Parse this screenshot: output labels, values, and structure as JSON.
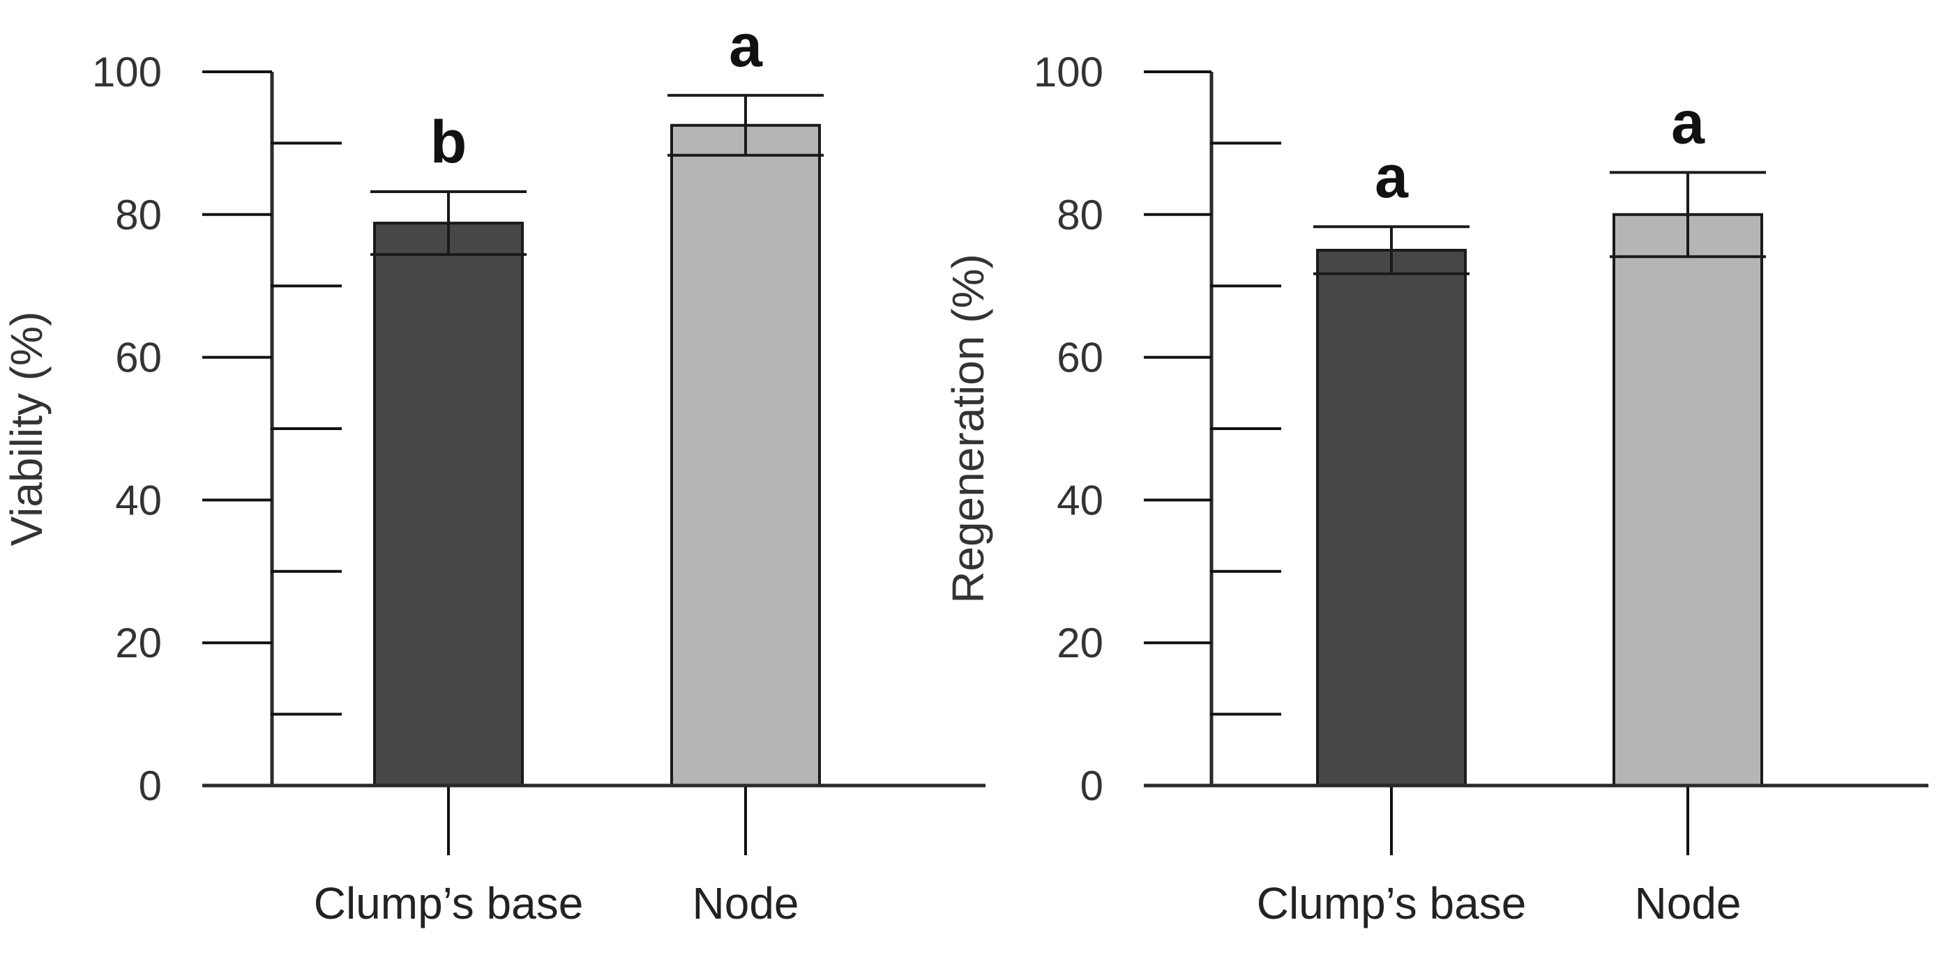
{
  "chart_data": [
    {
      "type": "bar",
      "title": "",
      "xlabel": "",
      "ylabel": "Viability (%)",
      "ylim": [
        0,
        100
      ],
      "yticks": [
        0,
        20,
        40,
        60,
        80,
        100
      ],
      "categories": [
        "Clump’s base",
        "Node"
      ],
      "values": [
        78.8,
        92.5
      ],
      "errors": [
        4.4,
        4.2
      ],
      "significance": [
        "b",
        "a"
      ],
      "colors": [
        "#474747",
        "#b5b5b5"
      ]
    },
    {
      "type": "bar",
      "title": "",
      "xlabel": "",
      "ylabel": "Regeneration (%)",
      "ylim": [
        0,
        100
      ],
      "yticks": [
        0,
        20,
        40,
        60,
        80,
        100
      ],
      "categories": [
        "Clump’s base",
        "Node"
      ],
      "values": [
        75.0,
        80.0
      ],
      "errors": [
        3.3,
        5.9
      ],
      "significance": [
        "a",
        "a"
      ],
      "colors": [
        "#474747",
        "#b5b5b5"
      ]
    }
  ]
}
